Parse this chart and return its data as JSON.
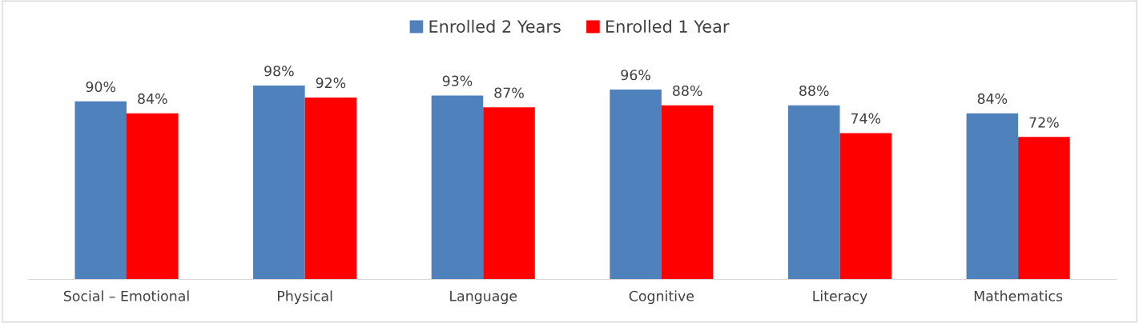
{
  "chart_data": {
    "type": "bar",
    "categories": [
      "Social – Emotional",
      "Physical",
      "Language",
      "Cognitive",
      "Literacy",
      "Mathematics"
    ],
    "series": [
      {
        "name": "Enrolled 2 Years",
        "color": "#4f81bd",
        "values": [
          90,
          98,
          93,
          96,
          88,
          84
        ],
        "value_labels": [
          "90%",
          "98%",
          "93%",
          "96%",
          "88%",
          "84%"
        ]
      },
      {
        "name": "Enrolled 1 Year",
        "color": "#ff0000",
        "values": [
          84,
          92,
          87,
          88,
          74,
          72
        ],
        "value_labels": [
          "84%",
          "92%",
          "87%",
          "88%",
          "74%",
          "72%"
        ]
      }
    ],
    "legend": "top",
    "grid": false,
    "tick_labels": "x"
  }
}
